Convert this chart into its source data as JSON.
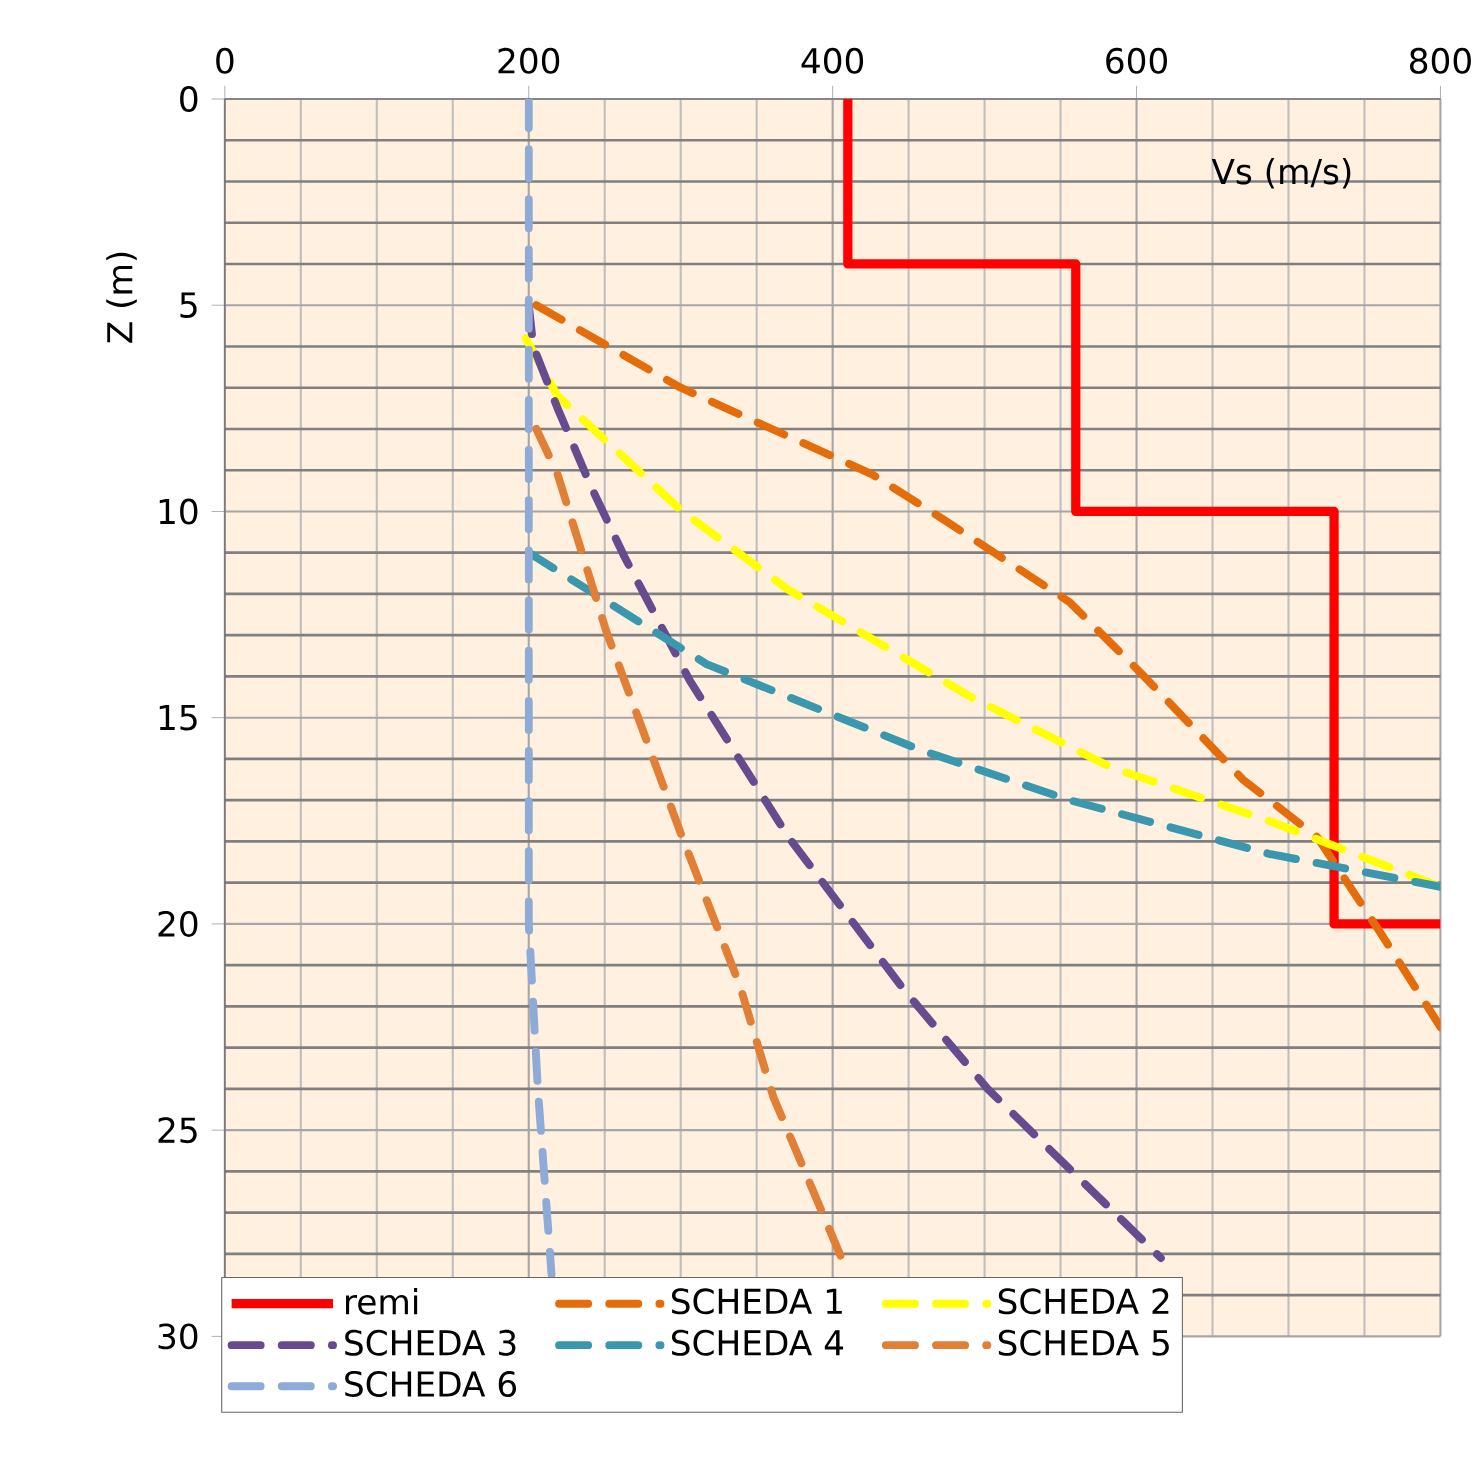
{
  "chart_data": {
    "type": "line",
    "xlabel": "Vs (m/s)",
    "ylabel": "Z (m)",
    "xlim": [
      0,
      800
    ],
    "xticks": [
      0,
      200,
      400,
      600,
      800
    ],
    "ylim": [
      30,
      0
    ],
    "yticks": [
      0,
      5,
      10,
      15,
      20,
      25,
      30
    ],
    "grid": true,
    "legend": "bottom",
    "marker": "none",
    "series": [
      {
        "name": "remi",
        "color": "#ff0000",
        "line_style": "solid",
        "x": [
          410,
          410,
          560,
          560,
          730,
          730,
          800
        ],
        "values": [
          0,
          4,
          4,
          10,
          10,
          20,
          20
        ]
      },
      {
        "name": "SCHEDA 1",
        "color": "#e46c0a",
        "line_style": "dashed",
        "x": [
          205,
          300,
          426,
          469,
          556,
          605,
          670,
          719,
          762,
          800
        ],
        "values": [
          5,
          7,
          9.1,
          10.1,
          12.2,
          14,
          16.5,
          17.9,
          20.3,
          22.5
        ]
      },
      {
        "name": "SCHEDA 2",
        "color": "#ffff00",
        "line_style": "dashed",
        "x": [
          198,
          219,
          301,
          371,
          491,
          583,
          687,
          800
        ],
        "values": [
          5.8,
          7.2,
          10,
          11.9,
          14.5,
          16.2,
          17.5,
          19.1
        ]
      },
      {
        "name": "SCHEDA 3",
        "color": "#664b8f",
        "line_style": "dashed",
        "x": [
          200,
          203,
          219,
          241,
          263,
          306,
          371,
          447,
          502,
          616
        ],
        "values": [
          5,
          6,
          7.5,
          9.4,
          11.1,
          14.1,
          17.9,
          21.6,
          24,
          28.1
        ]
      },
      {
        "name": "SCHEDA 4",
        "color": "#3a97ad",
        "line_style": "dashed",
        "x": [
          200,
          317,
          459,
          556,
          687,
          800
        ],
        "values": [
          11,
          13.7,
          15.8,
          17,
          18.3,
          19.1
        ]
      },
      {
        "name": "SCHEDA 5",
        "color": "#e07f35",
        "line_style": "dashed",
        "x": [
          205,
          219,
          251,
          301,
          339,
          361,
          407
        ],
        "values": [
          8,
          9.1,
          12.9,
          17.9,
          21.5,
          24.2,
          28.2
        ]
      },
      {
        "name": "SCHEDA 6",
        "color": "#8eaad6",
        "line_style": "dashed",
        "x": [
          200,
          200,
          206,
          215
        ],
        "values": [
          0,
          20,
          24,
          28.5
        ]
      }
    ]
  }
}
